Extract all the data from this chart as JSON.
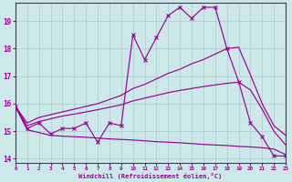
{
  "xlabel": "Windchill (Refroidissement éolien,°C)",
  "xlim": [
    0,
    23
  ],
  "ylim": [
    13.85,
    19.65
  ],
  "yticks": [
    14,
    15,
    16,
    17,
    18,
    19
  ],
  "xticks": [
    0,
    1,
    2,
    3,
    4,
    5,
    6,
    7,
    8,
    9,
    10,
    11,
    12,
    13,
    14,
    15,
    16,
    17,
    18,
    19,
    20,
    21,
    22,
    23
  ],
  "bg_color": "#cce8e8",
  "line_color": "#990099",
  "grid_color": "#aacccc",
  "x_values": [
    0,
    1,
    2,
    3,
    4,
    5,
    6,
    7,
    8,
    9,
    10,
    11,
    12,
    13,
    14,
    15,
    16,
    17,
    18,
    19,
    20,
    21,
    22,
    23
  ],
  "jagged": [
    15.9,
    15.1,
    15.3,
    14.9,
    15.1,
    15.1,
    15.3,
    14.6,
    15.3,
    15.2,
    18.5,
    17.6,
    18.4,
    19.2,
    19.5,
    19.1,
    19.5,
    19.5,
    18.0,
    16.8,
    15.3,
    14.8,
    14.1,
    14.1
  ],
  "upper_trend": [
    15.9,
    15.3,
    15.5,
    15.6,
    15.7,
    15.8,
    15.9,
    16.0,
    16.15,
    16.3,
    16.55,
    16.7,
    16.9,
    17.1,
    17.25,
    17.45,
    17.6,
    17.8,
    18.0,
    18.05,
    17.05,
    16.0,
    15.2,
    14.85
  ],
  "mid_trend": [
    15.9,
    15.2,
    15.35,
    15.45,
    15.55,
    15.62,
    15.7,
    15.78,
    15.87,
    15.96,
    16.1,
    16.2,
    16.3,
    16.4,
    16.48,
    16.55,
    16.62,
    16.68,
    16.74,
    16.78,
    16.5,
    15.8,
    15.0,
    14.5
  ],
  "lower_flat": [
    15.9,
    15.05,
    14.95,
    14.85,
    14.82,
    14.8,
    14.78,
    14.75,
    14.72,
    14.7,
    14.68,
    14.65,
    14.62,
    14.6,
    14.58,
    14.55,
    14.52,
    14.5,
    14.48,
    14.45,
    14.43,
    14.4,
    14.35,
    14.15
  ]
}
